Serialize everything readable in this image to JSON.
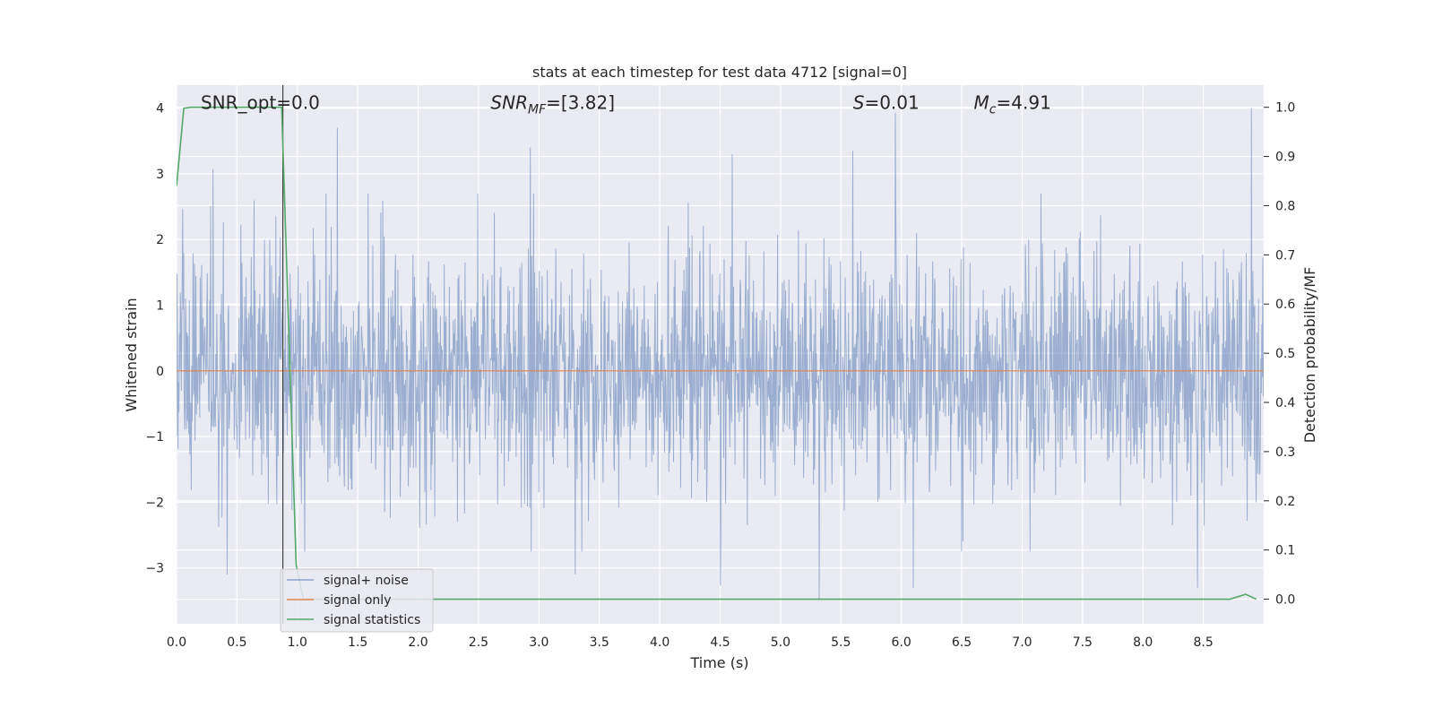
{
  "chart_data": {
    "type": "line",
    "title": "stats at each timestep for test data 4712 [signal=0]",
    "xlabel": "Time (s)",
    "ylabel_left": "Whitened strain",
    "ylabel_right": "Detection probability/MF",
    "xlim": [
      0.0,
      9.0
    ],
    "ylim_left": [
      -3.85,
      4.35
    ],
    "ylim_right": [
      -0.05,
      1.045
    ],
    "x_ticks": [
      "0.0",
      "0.5",
      "1.0",
      "1.5",
      "2.0",
      "2.5",
      "3.0",
      "3.5",
      "4.0",
      "4.5",
      "5.0",
      "5.5",
      "6.0",
      "6.5",
      "7.0",
      "7.5",
      "8.0",
      "8.5"
    ],
    "y_left_ticks": [
      "4",
      "3",
      "2",
      "1",
      "0",
      "−1",
      "−2",
      "−3"
    ],
    "y_right_ticks": [
      "1.0",
      "0.9",
      "0.8",
      "0.7",
      "0.6",
      "0.5",
      "0.4",
      "0.3",
      "0.2",
      "0.1",
      "0.0"
    ],
    "grid": true,
    "background": "#eaeaf2",
    "annotations": [
      {
        "text": "SNR_opt=0.0",
        "x": 0.2,
        "y": 4.0
      },
      {
        "text": "SNR_MF=[3.82]",
        "x": 2.6,
        "y": 4.0
      },
      {
        "text": "S=0.01",
        "x": 5.6,
        "y": 4.0
      },
      {
        "text": "M_c=4.91",
        "x": 6.6,
        "y": 4.0
      }
    ],
    "vline_x": 0.88,
    "legend_position": "bottom-left",
    "series": [
      {
        "name": "signal+ noise",
        "axis": "left",
        "color": "#4c72b0",
        "description": "whitened noise, approx. gaussian, |amplitude| mostly within 2.5",
        "amplitude_range": [
          -3.5,
          4.0
        ],
        "spikes": [
          {
            "x": 0.3,
            "y": 3.07
          },
          {
            "x": 1.33,
            "y": 3.7
          },
          {
            "x": 2.93,
            "y": 3.4
          },
          {
            "x": 4.6,
            "y": 3.3
          },
          {
            "x": 5.6,
            "y": 3.35
          },
          {
            "x": 5.95,
            "y": 3.93
          },
          {
            "x": 8.9,
            "y": 4.0
          },
          {
            "x": 0.42,
            "y": -3.1
          },
          {
            "x": 3.3,
            "y": -3.1
          },
          {
            "x": 4.5,
            "y": -3.27
          },
          {
            "x": 5.32,
            "y": -3.47
          },
          {
            "x": 6.1,
            "y": -3.3
          },
          {
            "x": 8.45,
            "y": -3.3
          }
        ]
      },
      {
        "name": "signal only",
        "axis": "left",
        "color": "#dd8452",
        "x": [
          0.0,
          9.0
        ],
        "y": [
          0.0,
          0.0
        ]
      },
      {
        "name": "signal statistics",
        "axis": "right",
        "color": "#55a868",
        "x": [
          0.0,
          0.06,
          0.12,
          0.3,
          0.87,
          0.99,
          1.05,
          2.0,
          4.0,
          6.0,
          8.0,
          8.72,
          8.85,
          8.94
        ],
        "y": [
          0.84,
          0.998,
          1.0,
          1.0,
          1.0,
          0.07,
          0.0,
          0.0,
          0.0,
          0.0,
          0.0,
          0.0,
          0.01,
          0.0
        ]
      }
    ]
  }
}
